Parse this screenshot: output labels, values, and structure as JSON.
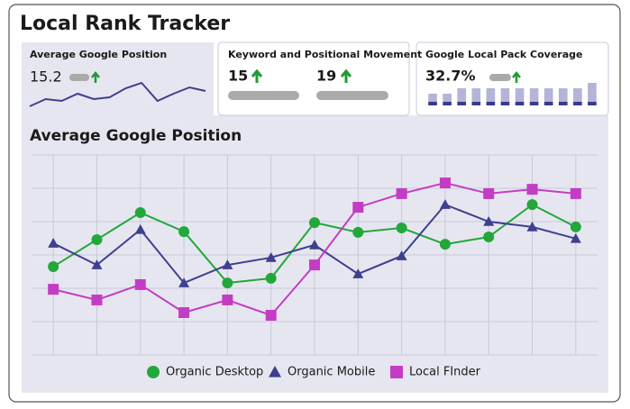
{
  "title": "Local Rank Tracker",
  "cards": [
    {
      "title": "Average Google Position",
      "value": "15.2"
    },
    {
      "title": "Keyword and Positional Movement",
      "values": [
        "15",
        "19"
      ]
    },
    {
      "title": "Google Local Pack Coverage",
      "value": "32.7%"
    }
  ],
  "chart_data": [
    {
      "type": "line",
      "title": "Average Google Position",
      "categories": [
        null,
        null,
        null,
        null,
        null,
        null,
        null,
        null,
        null,
        null,
        null,
        null,
        null
      ],
      "ylim": [
        0,
        6
      ],
      "grid": true,
      "series": [
        {
          "name": "Organic Desktop",
          "color": "#22a83a",
          "marker": "circle",
          "values": [
            2.65,
            3.46,
            4.27,
            3.7,
            2.16,
            2.3,
            3.97,
            3.68,
            3.81,
            3.32,
            3.54,
            4.51,
            3.84
          ]
        },
        {
          "name": "Organic Mobile",
          "color": "#3f3f8f",
          "marker": "triangle",
          "values": [
            3.35,
            2.7,
            3.76,
            2.16,
            2.7,
            2.92,
            3.3,
            2.43,
            2.97,
            4.51,
            4.0,
            3.84,
            3.49
          ]
        },
        {
          "name": "Local FInder",
          "color": "#c43cc4",
          "marker": "square",
          "values": [
            1.97,
            1.65,
            2.11,
            1.27,
            1.65,
            1.19,
            2.7,
            4.43,
            4.84,
            5.16,
            4.84,
            4.97,
            4.84
          ]
        }
      ]
    },
    {
      "type": "sparkline",
      "categories": [
        null,
        null,
        null,
        null,
        null,
        null,
        null,
        null,
        null,
        null,
        null,
        null
      ],
      "values": [
        2,
        10,
        8,
        16,
        10,
        12,
        22,
        28,
        8,
        16,
        23,
        19
      ],
      "color": "#3f3f8f",
      "ylim": [
        0,
        30
      ]
    },
    {
      "type": "bar",
      "stacked": true,
      "categories": [
        null,
        null,
        null,
        null,
        null,
        null,
        null,
        null,
        null,
        null,
        null,
        null
      ],
      "ylim": [
        0,
        25
      ],
      "series": [
        {
          "color": "#3a3a8c",
          "values": [
            4,
            4,
            4,
            4,
            4,
            4,
            4,
            4,
            4,
            4,
            4,
            4
          ]
        },
        {
          "color": "#b4b4d8",
          "values": [
            9,
            9,
            15,
            15,
            15,
            15,
            15,
            15,
            15,
            15,
            15,
            21
          ]
        }
      ]
    }
  ]
}
